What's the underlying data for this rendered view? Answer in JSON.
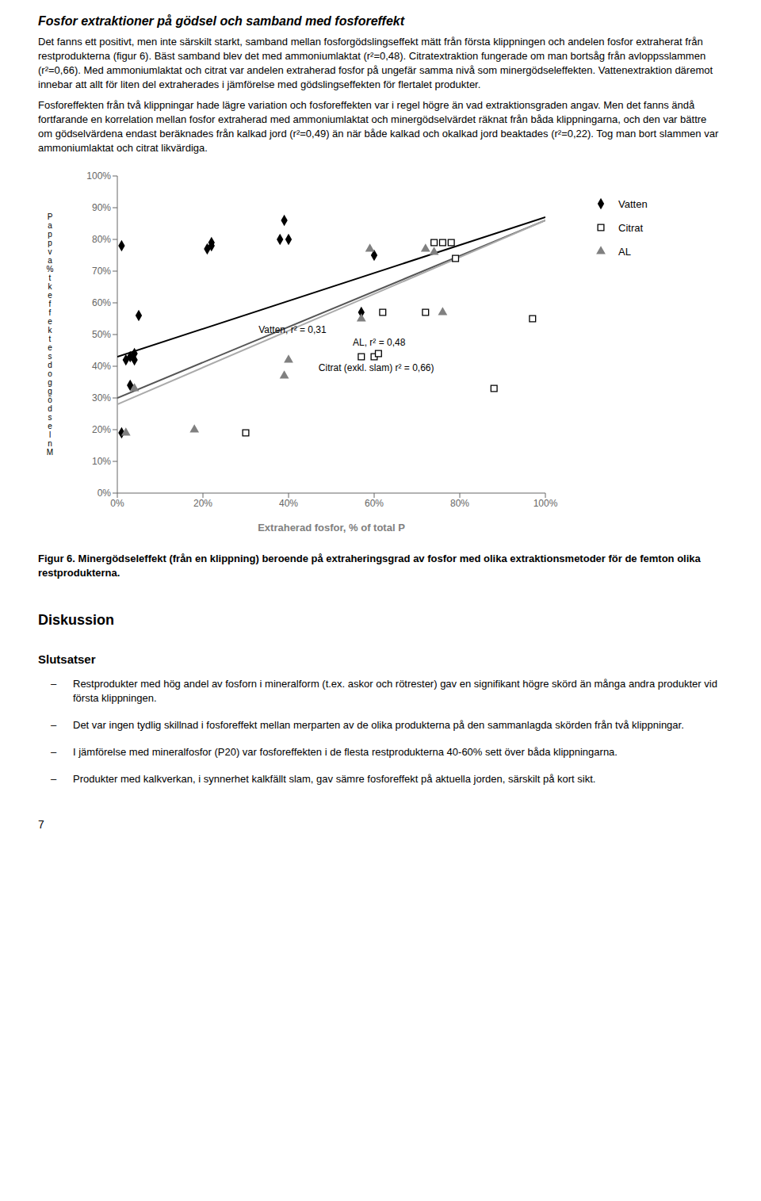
{
  "chart_data": {
    "type": "scatter",
    "xlabel": "Extraherad fosfor, % of total P",
    "ylabel": "P\na\np\np\nv\na\n%\nt\nk\ne\nf\nf\ne\nk\nt\ne\ns\nd\no\ng\ng\nö\nd\ns\ne\nl\nn\nM",
    "xlim": [
      0,
      1.0
    ],
    "ylim": [
      0,
      1.0
    ],
    "xticks": [
      {
        "value": 0,
        "label": "0%"
      },
      {
        "value": 0.2,
        "label": "20%"
      },
      {
        "value": 0.4,
        "label": "40%"
      },
      {
        "value": 0.6,
        "label": "60%"
      },
      {
        "value": 0.8,
        "label": "80%"
      },
      {
        "value": 1.0,
        "label": "100%"
      }
    ],
    "yticks": [
      {
        "value": 0,
        "label": "0%"
      },
      {
        "value": 0.1,
        "label": "10%"
      },
      {
        "value": 0.2,
        "label": "20%"
      },
      {
        "value": 0.3,
        "label": "30%"
      },
      {
        "value": 0.4,
        "label": "40%"
      },
      {
        "value": 0.5,
        "label": "50%"
      },
      {
        "value": 0.6,
        "label": "60%"
      },
      {
        "value": 0.7,
        "label": "70%"
      },
      {
        "value": 0.8,
        "label": "80%"
      },
      {
        "value": 0.9,
        "label": "90%"
      },
      {
        "value": 1.0,
        "label": "100%"
      }
    ],
    "grid": false,
    "series": [
      {
        "name": "Vatten",
        "type": "scatter",
        "marker": "diamond",
        "color": "#000000",
        "x": [
          0.01,
          0.01,
          0.02,
          0.03,
          0.03,
          0.04,
          0.04,
          0.05,
          0.21,
          0.22,
          0.22,
          0.38,
          0.39,
          0.4,
          0.57,
          0.6
        ],
        "values": [
          0.19,
          0.78,
          0.42,
          0.43,
          0.34,
          0.42,
          0.44,
          0.56,
          0.77,
          0.78,
          0.79,
          0.8,
          0.86,
          0.8,
          0.57,
          0.75
        ]
      },
      {
        "name": "Citrat",
        "type": "scatter",
        "marker": "open-square",
        "color": "#000000",
        "x": [
          0.3,
          0.57,
          0.6,
          0.61,
          0.62,
          0.72,
          0.74,
          0.76,
          0.78,
          0.79,
          0.88,
          0.97
        ],
        "values": [
          0.19,
          0.43,
          0.43,
          0.44,
          0.57,
          0.57,
          0.79,
          0.79,
          0.79,
          0.74,
          0.33,
          0.55
        ]
      },
      {
        "name": "AL",
        "type": "scatter",
        "marker": "triangle",
        "color": "#808080",
        "x": [
          0.02,
          0.04,
          0.18,
          0.39,
          0.4,
          0.57,
          0.59,
          0.72,
          0.74,
          0.76
        ],
        "values": [
          0.19,
          0.33,
          0.2,
          0.37,
          0.42,
          0.55,
          0.77,
          0.77,
          0.76,
          0.57
        ]
      },
      {
        "name": "Vatten, r² = 0,31",
        "type": "line",
        "color": "#000000",
        "x": [
          0.0,
          1.0
        ],
        "values": [
          0.43,
          0.87
        ]
      },
      {
        "name": "AL, r² = 0,48",
        "type": "line",
        "color": "#555555",
        "x": [
          0.0,
          1.0
        ],
        "values": [
          0.3,
          0.86
        ]
      },
      {
        "name": "Citrat (exkl. slam) r² = 0,66)",
        "type": "line",
        "color": "#aaaaaa",
        "x": [
          0.0,
          1.0
        ],
        "values": [
          0.28,
          0.86
        ]
      }
    ]
  },
  "page": {
    "header": "Fosfor extraktioner på gödsel och samband med fosforeffekt",
    "paragraphs": [
      "Det fanns ett positivt, men inte särskilt starkt, samband mellan fosforgödslingseffekt mätt från första klippningen och andelen fosfor extraherat från restprodukterna (figur 6). Bäst samband blev det med ammoniumlaktat (r²=0,48). Citratextraktion fungerade om man bortsåg från avloppsslammen (r²=0,66). Med ammoniumlaktat och citrat var andelen extraherad fosfor på ungefär samma nivå som minergödseleffekten. Vattenextraktion däremot innebar att allt för liten del extraherades i jämförelse med gödslingseffekten för flertalet produkter.",
      "Fosforeffekten från två klippningar hade lägre variation och fosforeffekten var i regel högre än vad extraktionsgraden angav. Men det fanns ändå fortfarande en korrelation mellan fosfor extraherad med ammoniumlaktat och minergödselvärdet räknat från båda klippningarna, och den var bättre om gödselvärdena endast beräknades från kalkad jord (r²=0,49) än när både kalkad och okalkad jord beaktades (r²=0,22). Tog man bort slammen var ammoniumlaktat och citrat likvärdiga."
    ],
    "caption": "Figur 6. Minergödseleffekt (från en klippning) beroende på extraheringsgrad av fosfor med olika extraktionsmetoder för de femton olika restprodukterna.",
    "headings": [
      "Diskussion",
      "Slutsatser"
    ],
    "bullet_mark": "–",
    "bullets": [
      "Restprodukter med hög andel av fosforn i mineralform (t.ex. askor och rötrester) gav en signifikant högre skörd än många andra produkter vid första klippningen.",
      "Det var ingen tydlig skillnad i fosforeffekt mellan merparten av de olika produkterna på den sammanlagda skörden från två klippningar.",
      "I jämförelse med mineralfosfor (P20) var fosforeffekten i de flesta restprodukterna 40-60% sett över båda klippningarna.",
      "Produkter med kalkverkan, i synnerhet kalkfällt slam, gav sämre fosforeffekt på aktuella jorden, särskilt på kort sikt."
    ],
    "page_number": "7"
  }
}
